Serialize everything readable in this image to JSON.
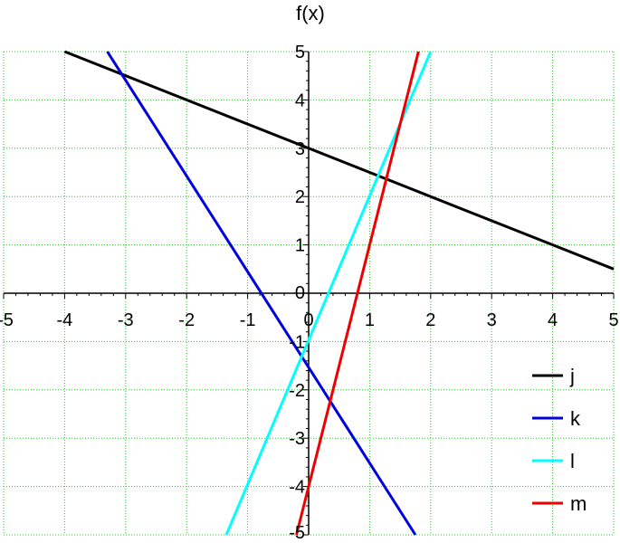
{
  "chart_data": {
    "type": "line",
    "title": "",
    "xlabel": "",
    "ylabel": "f(x)",
    "xlim": [
      -5,
      5
    ],
    "ylim": [
      -5,
      5
    ],
    "x_ticks": [
      "-5",
      "-4",
      "-3",
      "-2",
      "-1",
      "0",
      "1",
      "2",
      "3",
      "4",
      "5"
    ],
    "y_ticks": [
      "-5",
      "-4",
      "-3",
      "-2",
      "-1",
      "0",
      "1",
      "2",
      "3",
      "4",
      "5"
    ],
    "grid": true,
    "grid_color": "#22cc22",
    "legend_position": "bottom-right",
    "series": [
      {
        "name": "j",
        "color": "#000000",
        "x": [
          -4,
          5
        ],
        "y": [
          5,
          0.5
        ]
      },
      {
        "name": "k",
        "color": "#0000dd",
        "x": [
          -3.3,
          1.75
        ],
        "y": [
          5,
          -5
        ]
      },
      {
        "name": "l",
        "color": "#00ffff",
        "x": [
          -1.35,
          2
        ],
        "y": [
          -5,
          5
        ]
      },
      {
        "name": "m",
        "color": "#ee0000",
        "x": [
          -0.2,
          1.8
        ],
        "y": [
          -5,
          5
        ]
      }
    ]
  }
}
